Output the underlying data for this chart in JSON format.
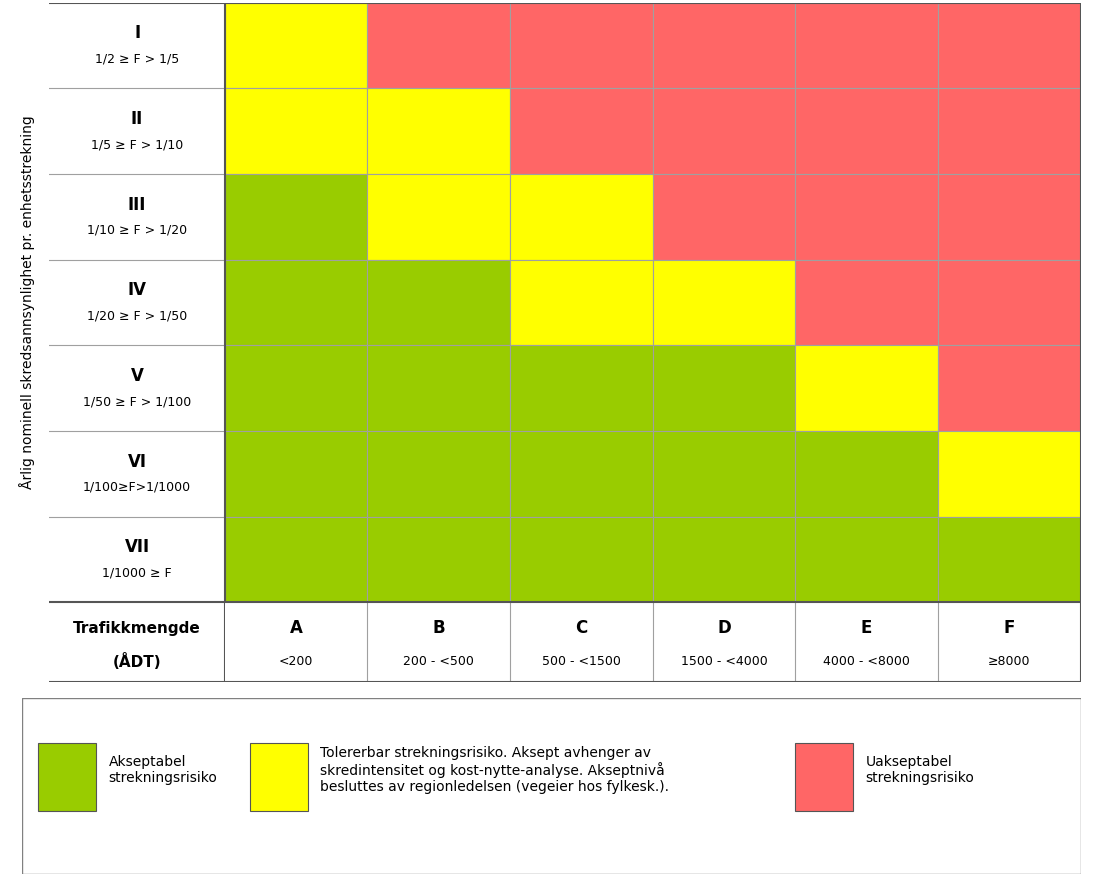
{
  "grid_colors": [
    [
      "#FFFF00",
      "#FF6666",
      "#FF6666",
      "#FF6666",
      "#FF6666",
      "#FF6666"
    ],
    [
      "#FFFF00",
      "#FFFF00",
      "#FF6666",
      "#FF6666",
      "#FF6666",
      "#FF6666"
    ],
    [
      "#99CC00",
      "#FFFF00",
      "#FFFF00",
      "#FF6666",
      "#FF6666",
      "#FF6666"
    ],
    [
      "#99CC00",
      "#99CC00",
      "#FFFF00",
      "#FFFF00",
      "#FF6666",
      "#FF6666"
    ],
    [
      "#99CC00",
      "#99CC00",
      "#99CC00",
      "#99CC00",
      "#FFFF00",
      "#FF6666"
    ],
    [
      "#99CC00",
      "#99CC00",
      "#99CC00",
      "#99CC00",
      "#99CC00",
      "#FFFF00"
    ],
    [
      "#99CC00",
      "#99CC00",
      "#99CC00",
      "#99CC00",
      "#99CC00",
      "#99CC00"
    ]
  ],
  "row_labels_line1": [
    "I",
    "II",
    "III",
    "IV",
    "V",
    "VI",
    "VII"
  ],
  "row_labels_line2": [
    "1/2 ≥ F > 1/5",
    "1/5 ≥ F > 1/10",
    "1/10 ≥ F > 1/20",
    "1/20 ≥ F > 1/50",
    "1/50 ≥ F > 1/100",
    "1/100≥F>1/1000",
    "1/1000 ≥ F"
  ],
  "col_labels_line1": [
    "A",
    "B",
    "C",
    "D",
    "E",
    "F"
  ],
  "col_labels_line2": [
    "<200",
    "200 - <500",
    "500 - <1500",
    "1500 - <4000",
    "4000 - <8000",
    "≥8000"
  ],
  "ylabel": "Årlig nominell skredsannsynlighet pr. enhetsstrekning",
  "xlabel_line1": "Trafikkmengde",
  "xlabel_line2": "(ÅDT)",
  "legend_green_label": "Akseptabel\nstrekningsrisiko",
  "legend_yellow_label": "Tolererbar strekningsrisiko. Aksept avhenger av\nskredintensitet og kost-nytte-analyse. Akseptnivå\nbesluttes av regionledelsen (vegeier hos fylkesk.).",
  "legend_red_label": "Uakseptabel\nstrekningsrisiko",
  "green_color": "#99CC00",
  "yellow_color": "#FFFF00",
  "red_color": "#FF6666",
  "border_color": "#A0A0A0",
  "background_color": "#FFFFFF",
  "n_rows": 7,
  "n_cols": 6
}
